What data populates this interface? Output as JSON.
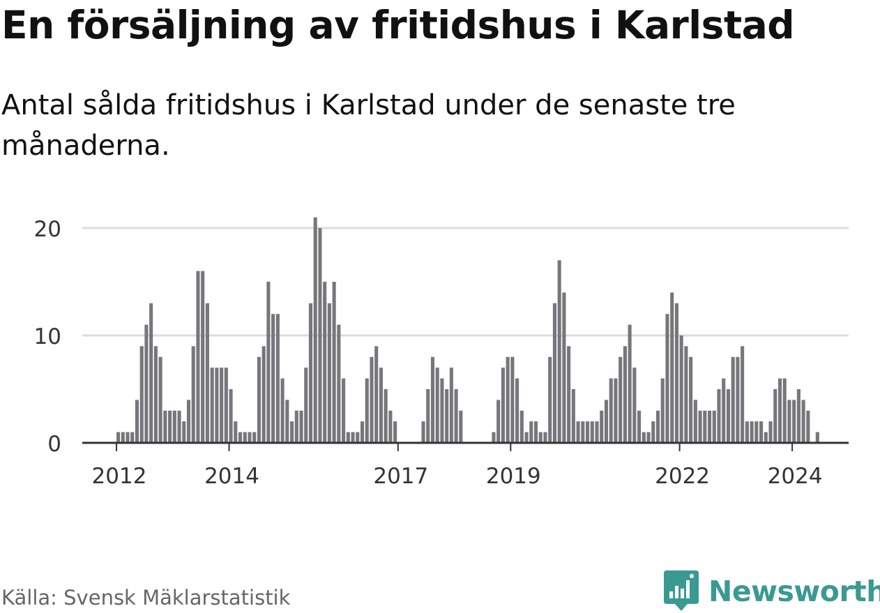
{
  "header": {
    "title": "En försäljning av fritidshus i Karlstad",
    "subtitle": "Antal sålda fritidshus i Karlstad under de senaste tre månaderna."
  },
  "footer": {
    "source": "Källa: Svensk Mäklarstatistik",
    "brand": "Newsworthy",
    "brand_icon": "newsworthy-logo-icon"
  },
  "colors": {
    "bar": "#77767b",
    "highlight": "#2a9d8f",
    "grid": "#dddddd",
    "axis": "#333333",
    "brand": "#3a9a92"
  },
  "chart_data": {
    "type": "bar",
    "title": "",
    "xlabel": "",
    "ylabel": "",
    "ylim": [
      0,
      20
    ],
    "yticks": [
      "0",
      "10",
      "20"
    ],
    "xtick_labels": [
      "2012",
      "2014",
      "2017",
      "2019",
      "2022",
      "2024"
    ],
    "series": [
      {
        "values": [
          1,
          1,
          1,
          1,
          4,
          9,
          11,
          13,
          9,
          8,
          3,
          3,
          3,
          3,
          2,
          4,
          9,
          16,
          16,
          13,
          7,
          7,
          7,
          7,
          5,
          2,
          1,
          1,
          1,
          1,
          8,
          9,
          15,
          12,
          12,
          6,
          4,
          2,
          3,
          3,
          7,
          13,
          21,
          20,
          15,
          13,
          15,
          11,
          6,
          1,
          1,
          1,
          2,
          6,
          8,
          9,
          7,
          5,
          3,
          2,
          0,
          0,
          0,
          0,
          0,
          2,
          5,
          8,
          7,
          6,
          5,
          7,
          5,
          3,
          0,
          0,
          0,
          0,
          0,
          0,
          1,
          4,
          7,
          8,
          8,
          6,
          3,
          1,
          2,
          2,
          1,
          1,
          8,
          13,
          17,
          14,
          9,
          5,
          2,
          2,
          2,
          2,
          2,
          3,
          4,
          6,
          6,
          8,
          9,
          11,
          7,
          3,
          1,
          1,
          2,
          3,
          6,
          12,
          14,
          13,
          10,
          9,
          8,
          4,
          3,
          3,
          3,
          3,
          5,
          6,
          5,
          8,
          8,
          9,
          2,
          2,
          2,
          2,
          1,
          2,
          5,
          6,
          6,
          4,
          4,
          5,
          4,
          3,
          0,
          1
        ]
      }
    ],
    "highlight": {
      "index": 150,
      "label": "1"
    }
  }
}
